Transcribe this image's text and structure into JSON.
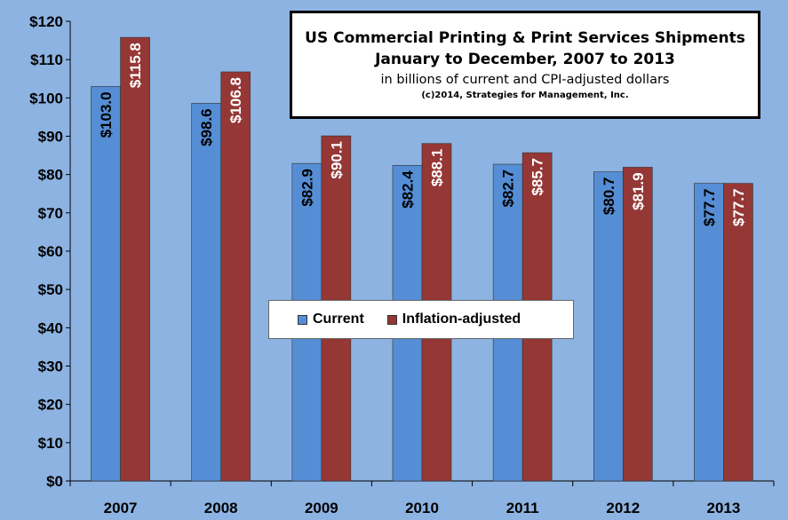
{
  "chart_data": {
    "type": "bar",
    "title": "US Commercial Printing & Print Services Shipments",
    "subtitle": "January to December, 2007 to 2013",
    "units_note": "in billions of current and CPI-adjusted dollars",
    "copyright": "(c)2014, Strategies for Management, Inc.",
    "categories": [
      "2007",
      "2008",
      "2009",
      "2010",
      "2011",
      "2012",
      "2013"
    ],
    "series": [
      {
        "name": "Current",
        "color": "#558ed5",
        "values": [
          103.0,
          98.6,
          82.9,
          82.4,
          82.7,
          80.7,
          77.7
        ],
        "labels": [
          "$103.0",
          "$98.6",
          "$82.9",
          "$82.4",
          "$82.7",
          "$80.7",
          "$77.7"
        ],
        "label_color": "#000000"
      },
      {
        "name": "Inflation-adjusted",
        "color": "#953735",
        "values": [
          115.8,
          106.8,
          90.1,
          88.1,
          85.7,
          81.9,
          77.7
        ],
        "labels": [
          "$115.8",
          "$106.8",
          "$90.1",
          "$88.1",
          "$85.7",
          "$81.9",
          "$77.7"
        ],
        "label_color": "#ffffff"
      }
    ],
    "ylim": [
      0,
      120
    ],
    "yticks": [
      "$0",
      "$10",
      "$20",
      "$30",
      "$40",
      "$50",
      "$60",
      "$70",
      "$80",
      "$90",
      "$100",
      "$110",
      "$120"
    ],
    "grid": false,
    "legend_position": "center",
    "background_color": "#8db3e2"
  }
}
